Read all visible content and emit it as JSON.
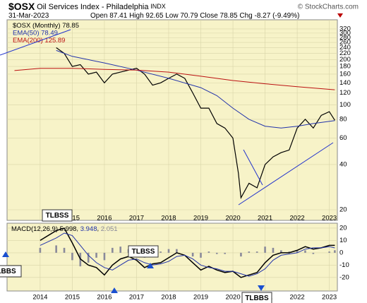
{
  "header": {
    "symbol": "$OSX",
    "name": "Oil Services Index - Philadelphia",
    "exchange": "INDX",
    "source": "© StockCharts.com",
    "date": "31-Mar-2023",
    "open_label": "Open",
    "open": 87.41,
    "high_label": "High",
    "high": 92.65,
    "low_label": "Low",
    "low": 70.79,
    "close_label": "Close",
    "close": 78.85,
    "chg_label": "Chg",
    "chg": "-8.27 (-9.49%)"
  },
  "chart_data": [
    {
      "type": "line",
      "log_scale": true,
      "ylim": [
        17,
        368
      ],
      "yticks": [
        20,
        40,
        60,
        80,
        100,
        120,
        140,
        160,
        180,
        200,
        220,
        240,
        260,
        280,
        300,
        320
      ],
      "xlim": [
        2012.97,
        2023.25
      ],
      "xticks": [
        2014,
        2015,
        2016,
        2017,
        2018,
        2019,
        2020,
        2021,
        2022,
        2023
      ],
      "grid": true,
      "series": [
        {
          "name": "$OSX (Monthly)",
          "last": 78.85,
          "color": "#000000",
          "x": [
            2014.5,
            2014.75,
            2015.0,
            2015.25,
            2015.5,
            2015.75,
            2016.0,
            2016.25,
            2016.5,
            2016.75,
            2017.0,
            2017.25,
            2017.5,
            2017.75,
            2018.0,
            2018.25,
            2018.5,
            2018.75,
            2019.0,
            2019.25,
            2019.5,
            2019.75,
            2020.0,
            2020.17,
            2020.25,
            2020.5,
            2020.75,
            2021.0,
            2021.25,
            2021.5,
            2021.75,
            2022.0,
            2022.25,
            2022.5,
            2022.75,
            2023.0,
            2023.17
          ],
          "values": [
            240,
            220,
            180,
            185,
            160,
            165,
            140,
            160,
            165,
            170,
            175,
            160,
            135,
            140,
            150,
            160,
            150,
            120,
            95,
            95,
            75,
            70,
            60,
            35,
            24,
            30,
            28,
            40,
            45,
            48,
            50,
            70,
            80,
            70,
            85,
            90,
            78.85
          ]
        },
        {
          "name": "EMA(50)",
          "last": 78.49,
          "color": "#2233aa",
          "x": [
            2014.5,
            2015.0,
            2016.0,
            2017.0,
            2018.0,
            2019.0,
            2019.5,
            2020.0,
            2020.5,
            2021.0,
            2021.5,
            2022.0,
            2022.5,
            2023.17
          ],
          "values": [
            230,
            210,
            190,
            170,
            150,
            130,
            115,
            95,
            80,
            72,
            70,
            72,
            75,
            78.49
          ]
        },
        {
          "name": "EMA(200)",
          "last": 125.89,
          "color": "#bb1111",
          "x": [
            2013.2,
            2014.0,
            2015.0,
            2016.0,
            2017.0,
            2018.0,
            2019.0,
            2020.0,
            2021.0,
            2022.0,
            2023.17
          ],
          "values": [
            169,
            175,
            175,
            172,
            170,
            165,
            155,
            145,
            138,
            132,
            125.89
          ]
        }
      ]
    },
    {
      "type": "macd",
      "title": "MACD(12,26,9)",
      "ylim": [
        -31,
        24
      ],
      "yticks": [
        -20,
        -10,
        0,
        10,
        20
      ],
      "xlim": [
        2012.97,
        2023.25
      ],
      "xticks": [
        2014,
        2015,
        2016,
        2017,
        2018,
        2019,
        2020,
        2021,
        2022,
        2023
      ],
      "x": [
        2014.0,
        2014.5,
        2014.75,
        2015.0,
        2015.25,
        2015.5,
        2015.75,
        2016.0,
        2016.25,
        2016.5,
        2016.75,
        2017.0,
        2017.25,
        2017.5,
        2017.75,
        2018.0,
        2018.25,
        2018.5,
        2018.75,
        2019.0,
        2019.25,
        2019.5,
        2019.75,
        2020.0,
        2020.25,
        2020.5,
        2020.75,
        2021.0,
        2021.25,
        2021.5,
        2021.75,
        2022.0,
        2022.25,
        2022.5,
        2022.75,
        2023.0,
        2023.17
      ],
      "series": [
        {
          "name": "MACD",
          "last": 5.998,
          "color": "#000000",
          "values": [
            10,
            18,
            20,
            8,
            -5,
            -10,
            -12,
            -18,
            -10,
            -5,
            -3,
            -6,
            -12,
            -9,
            -8,
            -4,
            0,
            -2,
            -8,
            -14,
            -11,
            -14,
            -16,
            -15,
            -20,
            -18,
            -16,
            -8,
            -2,
            0,
            0,
            2,
            5,
            3,
            4,
            6,
            5.998
          ]
        },
        {
          "name": "Signal",
          "last": 3.948,
          "color": "#2233aa",
          "values": [
            6,
            12,
            16,
            14,
            6,
            -2,
            -8,
            -12,
            -14,
            -10,
            -6,
            -5,
            -8,
            -10,
            -9,
            -7,
            -3,
            -2,
            -5,
            -10,
            -12,
            -13,
            -15,
            -15,
            -17,
            -19,
            -17,
            -13,
            -6,
            -2,
            -1,
            0,
            3,
            4,
            4,
            5,
            3.948
          ]
        },
        {
          "name": "Histogram",
          "last": 2.051,
          "color": "#8a8a9a",
          "values": [
            4,
            6,
            4,
            -6,
            -11,
            -8,
            -4,
            -6,
            4,
            5,
            3,
            -1,
            -4,
            1,
            1,
            3,
            3,
            0,
            -3,
            -4,
            1,
            -1,
            -1,
            0,
            -3,
            1,
            1,
            5,
            4,
            2,
            1,
            2,
            2,
            -1,
            0,
            1,
            2.051
          ]
        }
      ]
    }
  ],
  "annotations": [
    "TLBSS",
    "TLBSS",
    "TLBBS",
    "LBBS"
  ]
}
